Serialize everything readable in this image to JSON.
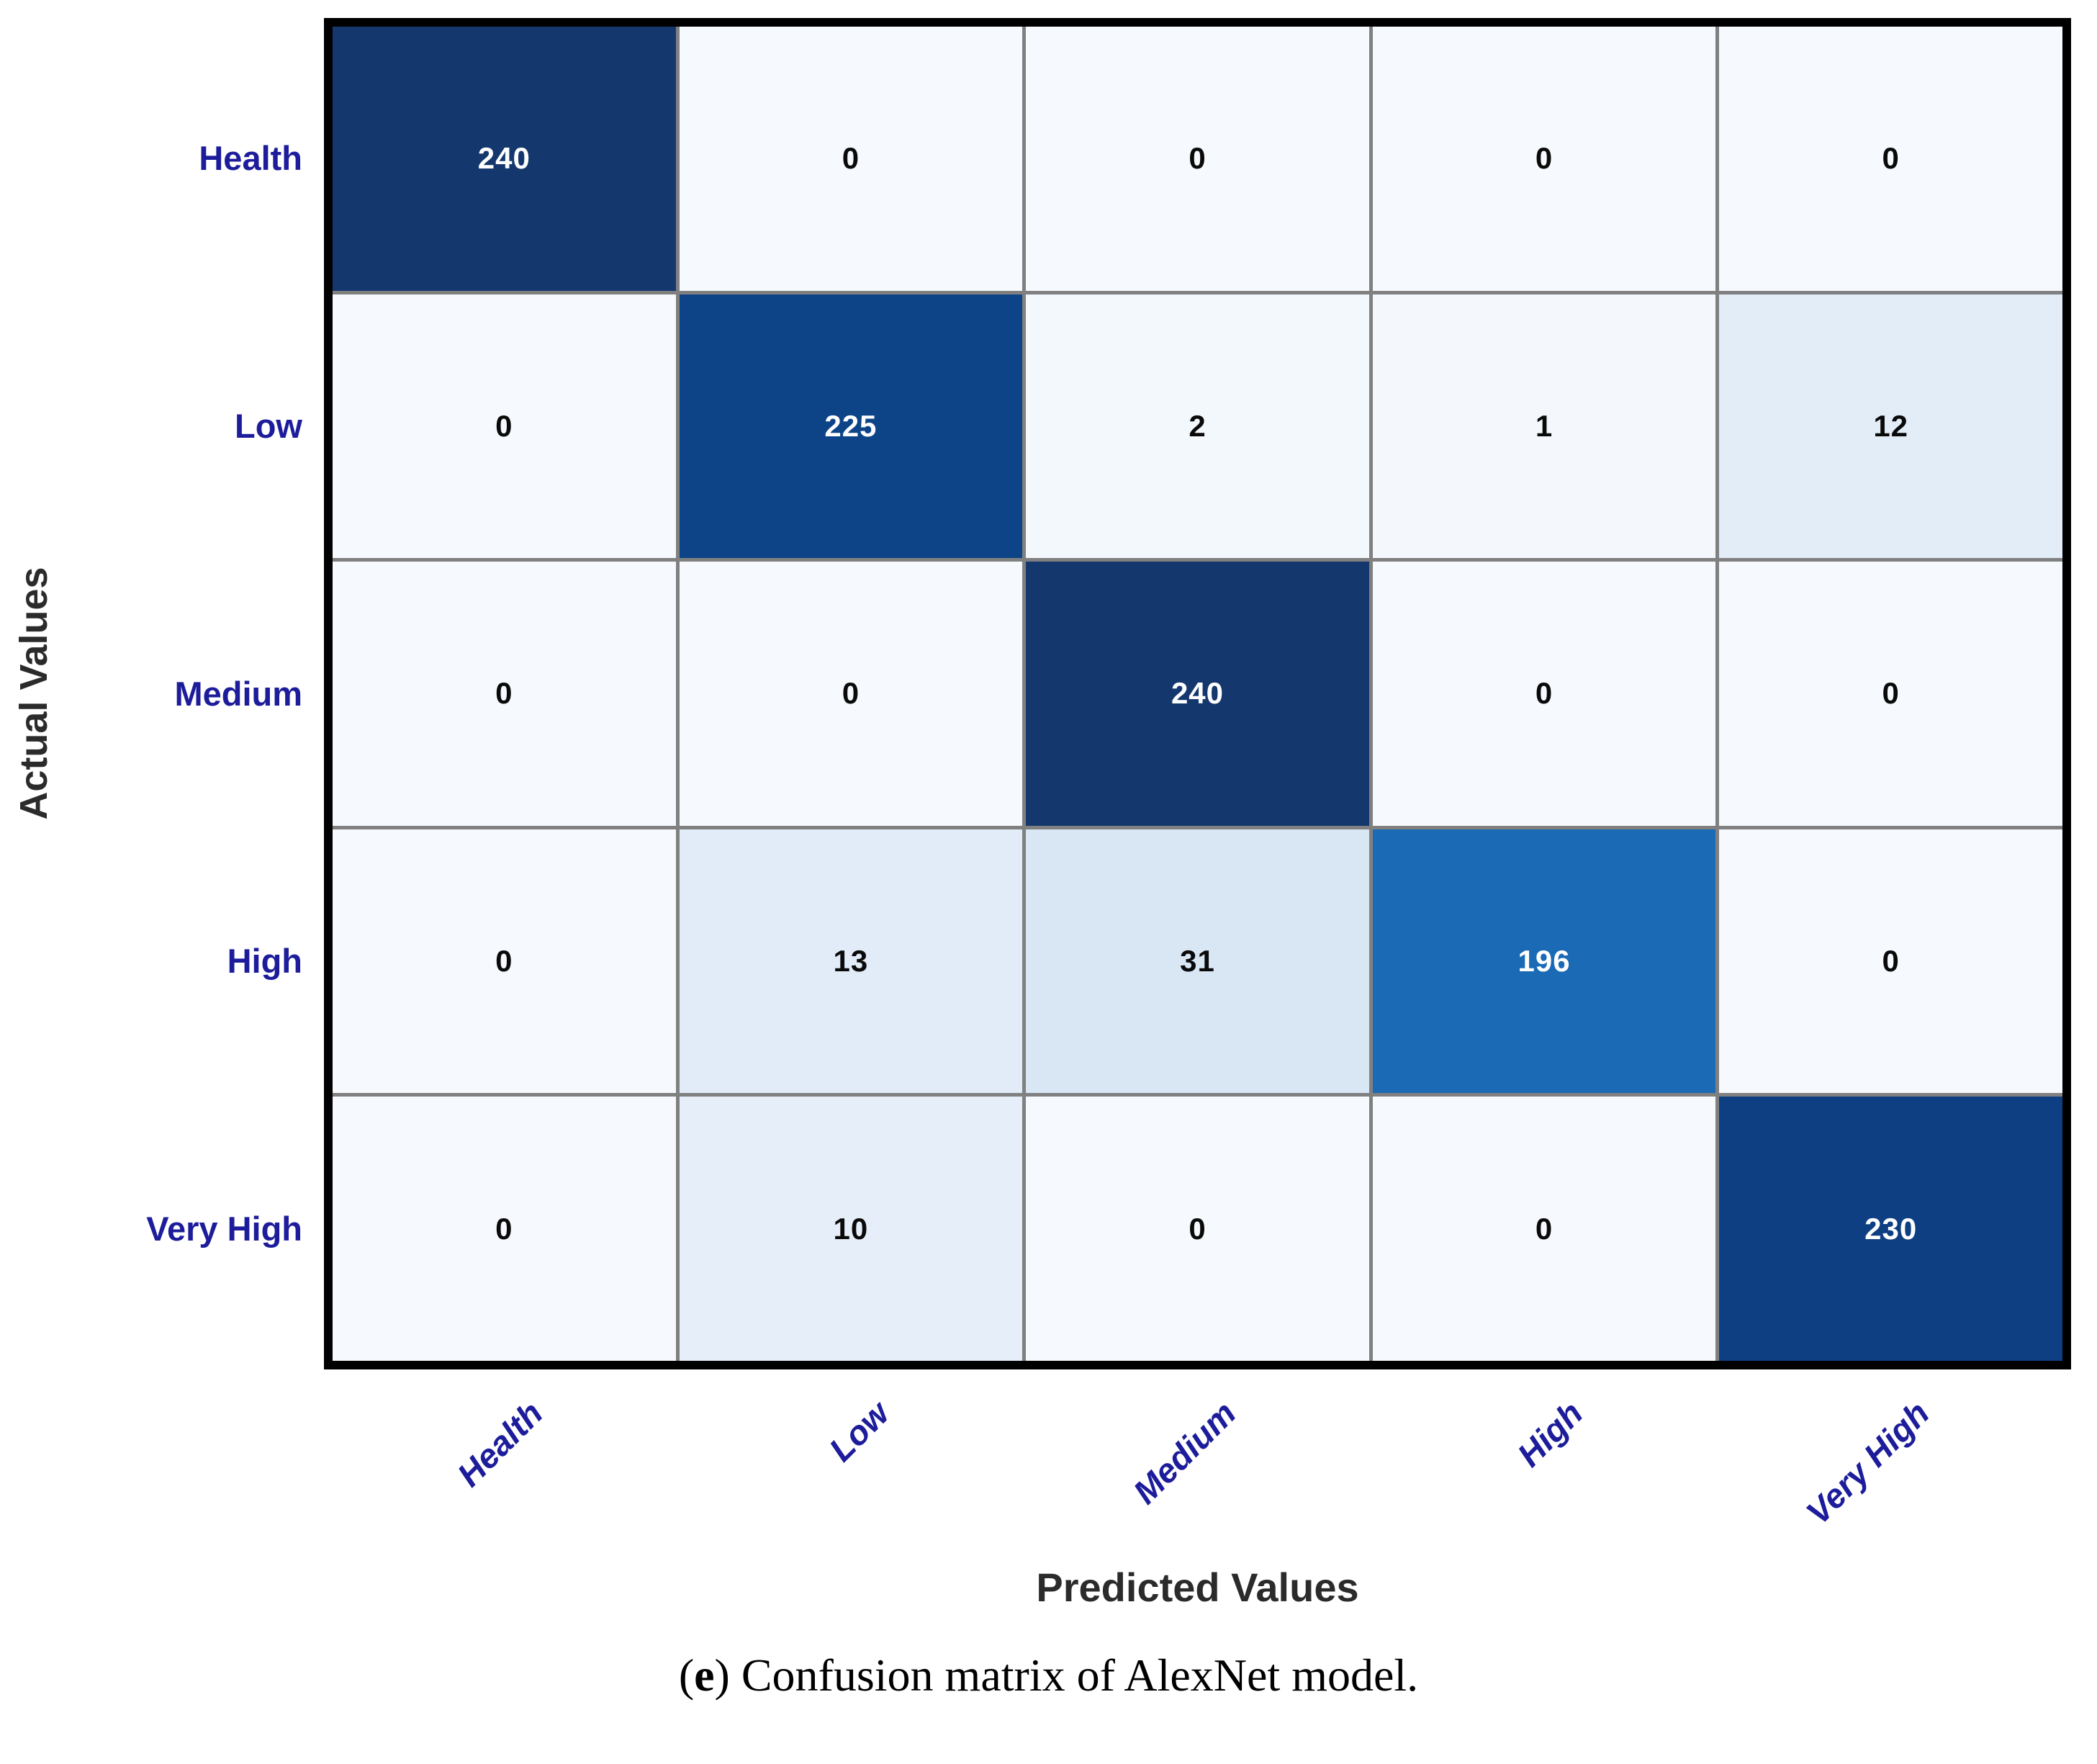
{
  "figure": {
    "caption_prefix": "(",
    "caption_emph": "e",
    "caption_suffix": ") Confusion matrix of AlexNet model."
  },
  "chart_data": {
    "type": "heatmap",
    "title": "",
    "xlabel": "Predicted Values",
    "ylabel": "Actual Values",
    "x_tick_labels": [
      "Health",
      "Low",
      "Medium",
      "High",
      "Very High"
    ],
    "y_tick_labels": [
      "Health",
      "Low",
      "Medium",
      "High",
      "Very High"
    ],
    "matrix": [
      [
        240,
        0,
        0,
        0,
        0
      ],
      [
        0,
        225,
        2,
        1,
        12
      ],
      [
        0,
        0,
        240,
        0,
        0
      ],
      [
        0,
        13,
        31,
        196,
        0
      ],
      [
        0,
        10,
        0,
        0,
        230
      ]
    ],
    "colormap": "Blues",
    "value_range": [
      0,
      240
    ],
    "grid": true,
    "legend_position": "none"
  },
  "style": {
    "tick_label_color": "#1d1d9c",
    "axis_title_color": "#2b2b2b",
    "grid_line_color": "#808080",
    "matrix_border_color": "#000000",
    "cell_colors": [
      [
        "#14386d",
        "#f6f9fd",
        "#f6f9fd",
        "#f6f9fd",
        "#f6f9fd"
      ],
      [
        "#f6f9fd",
        "#0d4487",
        "#f3f8fd",
        "#f4f8fd",
        "#e3edf8"
      ],
      [
        "#f6f9fd",
        "#f6f9fd",
        "#14386d",
        "#f6f9fd",
        "#f6f9fd"
      ],
      [
        "#f6f9fd",
        "#e1ecf8",
        "#d9e7f5",
        "#1a6ab5",
        "#f6f9fd"
      ],
      [
        "#f6f9fd",
        "#e6eff9",
        "#f6f9fd",
        "#f6f9fd",
        "#0e3f82"
      ]
    ],
    "cell_text_colors": [
      [
        "#ffffff",
        "#0a0a0a",
        "#0a0a0a",
        "#0a0a0a",
        "#0a0a0a"
      ],
      [
        "#0a0a0a",
        "#ffffff",
        "#0a0a0a",
        "#0a0a0a",
        "#0a0a0a"
      ],
      [
        "#0a0a0a",
        "#0a0a0a",
        "#ffffff",
        "#0a0a0a",
        "#0a0a0a"
      ],
      [
        "#0a0a0a",
        "#0a0a0a",
        "#0a0a0a",
        "#ffffff",
        "#0a0a0a"
      ],
      [
        "#0a0a0a",
        "#0a0a0a",
        "#0a0a0a",
        "#0a0a0a",
        "#ffffff"
      ]
    ]
  }
}
